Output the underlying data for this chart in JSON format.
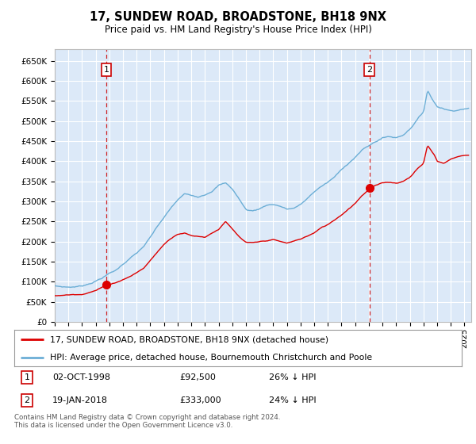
{
  "title": "17, SUNDEW ROAD, BROADSTONE, BH18 9NX",
  "subtitle": "Price paid vs. HM Land Registry's House Price Index (HPI)",
  "ylim": [
    0,
    680000
  ],
  "xlim_start": 1995.0,
  "xlim_end": 2025.5,
  "background_color": "#ffffff",
  "plot_bg_color": "#dce9f8",
  "grid_color": "#ffffff",
  "sale1_date": 1998.78,
  "sale1_price": 92500,
  "sale2_date": 2018.05,
  "sale2_price": 333000,
  "legend_line1": "17, SUNDEW ROAD, BROADSTONE, BH18 9NX (detached house)",
  "legend_line2": "HPI: Average price, detached house, Bournemouth Christchurch and Poole",
  "footer": "Contains HM Land Registry data © Crown copyright and database right 2024.\nThis data is licensed under the Open Government Licence v3.0.",
  "hpi_color": "#6baed6",
  "sale_color": "#dd0000",
  "dashed_line_color": "#cc0000",
  "hpi_anchors_x": [
    1995.0,
    1995.5,
    1996.0,
    1996.5,
    1997.0,
    1997.5,
    1998.0,
    1998.5,
    1999.0,
    1999.5,
    2000.0,
    2000.5,
    2001.0,
    2001.5,
    2002.0,
    2002.5,
    2003.0,
    2003.5,
    2004.0,
    2004.5,
    2005.0,
    2005.5,
    2006.0,
    2006.5,
    2007.0,
    2007.5,
    2008.0,
    2008.5,
    2009.0,
    2009.5,
    2010.0,
    2010.5,
    2011.0,
    2011.5,
    2012.0,
    2012.5,
    2013.0,
    2013.5,
    2014.0,
    2014.5,
    2015.0,
    2015.5,
    2016.0,
    2016.5,
    2017.0,
    2017.5,
    2018.0,
    2018.5,
    2019.0,
    2019.5,
    2020.0,
    2020.5,
    2021.0,
    2021.5,
    2022.0,
    2022.3,
    2022.6,
    2023.0,
    2023.5,
    2024.0,
    2024.5,
    2025.0
  ],
  "hpi_anchors_y": [
    90000,
    88000,
    87000,
    88000,
    90000,
    96000,
    103000,
    112000,
    122000,
    130000,
    145000,
    160000,
    172000,
    188000,
    210000,
    235000,
    258000,
    280000,
    300000,
    315000,
    310000,
    308000,
    315000,
    325000,
    340000,
    345000,
    330000,
    305000,
    278000,
    275000,
    280000,
    290000,
    292000,
    288000,
    280000,
    282000,
    290000,
    305000,
    322000,
    335000,
    345000,
    358000,
    375000,
    392000,
    408000,
    425000,
    435000,
    445000,
    455000,
    458000,
    455000,
    462000,
    478000,
    500000,
    520000,
    575000,
    555000,
    535000,
    530000,
    525000,
    528000,
    532000
  ],
  "red_anchors_x": [
    1995.0,
    1996.0,
    1997.0,
    1998.0,
    1998.78,
    1999.5,
    2000.5,
    2001.5,
    2002.0,
    2002.5,
    2003.0,
    2003.5,
    2004.0,
    2004.5,
    2005.0,
    2006.0,
    2007.0,
    2007.5,
    2008.0,
    2008.5,
    2009.0,
    2009.5,
    2010.0,
    2011.0,
    2012.0,
    2013.0,
    2014.0,
    2014.5,
    2015.0,
    2016.0,
    2017.0,
    2017.5,
    2018.0,
    2018.05,
    2018.5,
    2019.0,
    2019.5,
    2020.0,
    2020.5,
    2021.0,
    2021.5,
    2022.0,
    2022.3,
    2022.8,
    2023.0,
    2023.5,
    2024.0,
    2024.5,
    2025.0
  ],
  "red_anchors_y": [
    65000,
    67000,
    70000,
    80000,
    92500,
    100000,
    115000,
    135000,
    155000,
    175000,
    195000,
    210000,
    222000,
    225000,
    218000,
    215000,
    235000,
    255000,
    235000,
    215000,
    200000,
    198000,
    200000,
    205000,
    195000,
    205000,
    220000,
    232000,
    240000,
    265000,
    295000,
    315000,
    330000,
    333000,
    340000,
    345000,
    347000,
    345000,
    350000,
    360000,
    380000,
    395000,
    440000,
    415000,
    400000,
    395000,
    405000,
    412000,
    415000
  ]
}
